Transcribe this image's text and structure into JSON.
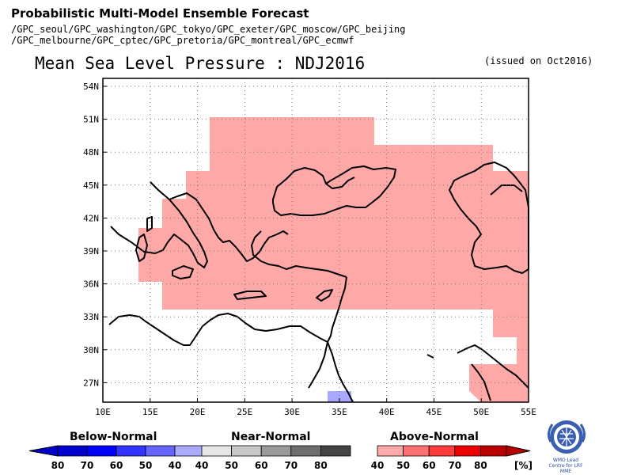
{
  "header": {
    "line1": "Probabilistic Multi-Model Ensemble Forecast",
    "line2": "/GPC_seoul/GPC_washington/GPC_tokyo/GPC_exeter/GPC_moscow/GPC_beijing",
    "line3": "/GPC_melbourne/GPC_cptec/GPC_pretoria/GPC_montreal/GPC_ecmwf"
  },
  "map": {
    "title": "Mean Sea Level Pressure : NDJ2016",
    "issued": "(issued on Oct2016)",
    "lon_labels": [
      "10E",
      "15E",
      "20E",
      "25E",
      "30E",
      "35E",
      "40E",
      "45E",
      "50E",
      "55E"
    ],
    "lat_labels": [
      "54N",
      "51N",
      "48N",
      "45N",
      "42N",
      "39N",
      "36N",
      "33N",
      "30N",
      "27N"
    ]
  },
  "legend": {
    "below": {
      "title": "Below-Normal",
      "ticks": [
        "80",
        "70",
        "60",
        "50",
        "40"
      ],
      "colors": [
        "#0000cc",
        "#0000ff",
        "#3333ff",
        "#6666ff",
        "#aaaaff"
      ]
    },
    "near": {
      "title": "Near-Normal",
      "ticks": [
        "40",
        "50",
        "60",
        "70",
        "80"
      ],
      "colors": [
        "#e6e6e6",
        "#c8c8c8",
        "#9a9a9a",
        "#6e6e6e",
        "#444444"
      ]
    },
    "above": {
      "title": "Above-Normal",
      "ticks": [
        "40",
        "50",
        "60",
        "70",
        "80"
      ],
      "colors": [
        "#ffaaaa",
        "#ff7070",
        "#ff3a3a",
        "#ee0000",
        "#bb0000"
      ]
    },
    "unit": "[%]"
  },
  "logo": {
    "text": "WMO Lead Centre for LRF MME"
  },
  "colors": {
    "above_fill": "#ffa8a8",
    "below_fill": "#a8a8ff"
  }
}
